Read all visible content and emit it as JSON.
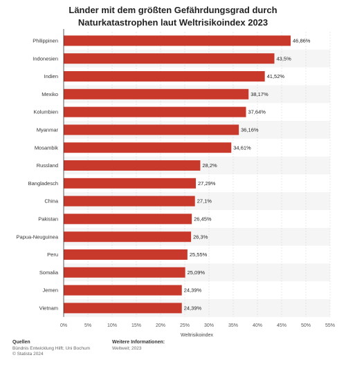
{
  "chart_data": {
    "type": "bar",
    "orientation": "horizontal",
    "title": "Länder mit dem größten Gefährdungsgrad durch Naturkatastrophen laut Weltrisikoindex 2023",
    "xlabel": "Weltrisikoindex",
    "xlim": [
      0,
      55
    ],
    "x_ticks": [
      0,
      5,
      10,
      15,
      20,
      25,
      30,
      35,
      40,
      45,
      50,
      55
    ],
    "tick_suffix": "%",
    "categories": [
      "Philippinen",
      "Indonesien",
      "Indien",
      "Mexiko",
      "Kolumbien",
      "Myanmar",
      "Mosambik",
      "Russland",
      "Bangladesch",
      "China",
      "Pakistan",
      "Papua-Neuguinea",
      "Peru",
      "Somalia",
      "Jemen",
      "Vietnam"
    ],
    "values": [
      46.86,
      43.5,
      41.52,
      38.17,
      37.64,
      36.16,
      34.61,
      28.2,
      27.29,
      27.1,
      26.45,
      26.3,
      25.55,
      25.09,
      24.39,
      24.39
    ],
    "value_labels": [
      "46,86%",
      "43,5%",
      "41,52%",
      "38,17%",
      "37,64%",
      "36,16%",
      "34,61%",
      "28,2%",
      "27,29%",
      "27,1%",
      "26,45%",
      "26,3%",
      "25,55%",
      "25,09%",
      "24,39%",
      "24,39%"
    ],
    "bar_color": "#c9392b",
    "grid": true
  },
  "footer": {
    "sources_title": "Quellen",
    "sources_line1": "Bündnis Entwicklung Hilft; Uni Bochum",
    "sources_line2": "© Statista 2024",
    "info_title": "Weitere Informationen:",
    "info_line1": "Weltweit; 2023"
  }
}
